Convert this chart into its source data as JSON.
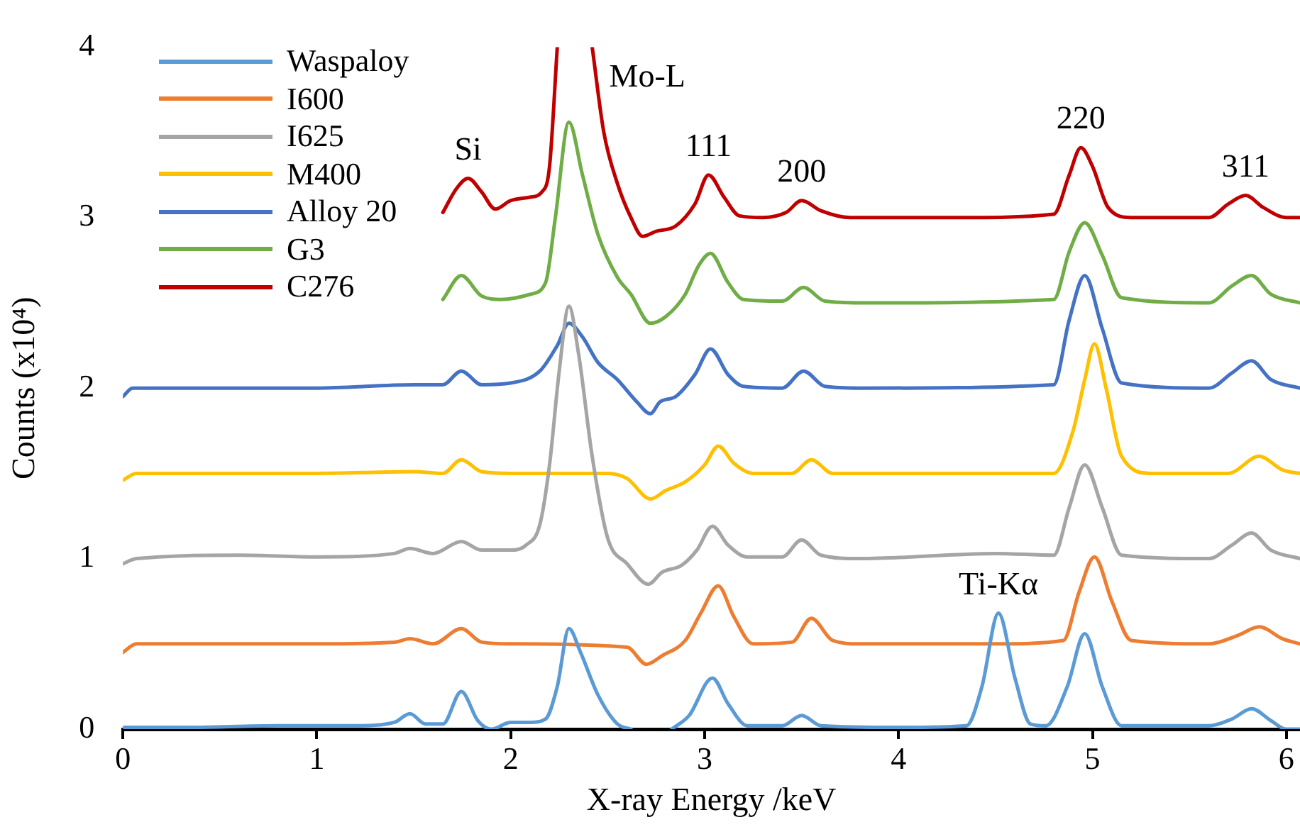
{
  "chart_data": {
    "type": "line",
    "xlabel": "X-ray Energy /keV",
    "ylabel": "Counts (x10⁴)",
    "xlim": [
      0,
      6.07
    ],
    "ylim": [
      0,
      4
    ],
    "xticks": [
      0,
      1,
      2,
      3,
      4,
      5,
      6
    ],
    "yticks": [
      0,
      1,
      2,
      3,
      4
    ],
    "grid": false,
    "legend": "top left",
    "series": [
      {
        "name": "Waspaloy",
        "color": "#5b9bd5",
        "x": [
          0,
          0.3,
          0.8,
          1.2,
          1.4,
          1.48,
          1.56,
          1.65,
          1.745,
          1.83,
          1.9,
          2.0,
          2.1,
          2.18,
          2.24,
          2.3,
          2.36,
          2.45,
          2.55,
          2.62,
          2.7,
          2.83,
          2.92,
          3.04,
          3.12,
          3.22,
          3.4,
          3.5,
          3.6,
          4.0,
          4.35,
          4.43,
          4.515,
          4.6,
          4.68,
          4.76,
          4.87,
          4.96,
          5.05,
          5.15,
          5.6,
          5.72,
          5.82,
          5.92,
          6.0,
          6.07
        ],
        "values": [
          0.01,
          0.01,
          0.02,
          0.02,
          0.04,
          0.09,
          0.03,
          0.03,
          0.22,
          0.05,
          0.0,
          0.04,
          0.04,
          0.06,
          0.25,
          0.59,
          0.45,
          0.2,
          0.03,
          0.0,
          null,
          0.0,
          0.08,
          0.3,
          0.15,
          0.02,
          0.02,
          0.08,
          0.02,
          0.01,
          0.02,
          0.25,
          0.68,
          0.3,
          0.03,
          0.02,
          0.25,
          0.56,
          0.25,
          0.02,
          0.02,
          0.06,
          0.12,
          0.05,
          0.0,
          0.0
        ]
      },
      {
        "name": "I600",
        "color": "#ed7d31",
        "x": [
          0,
          0.07,
          0.6,
          1.0,
          1.4,
          1.48,
          1.6,
          1.745,
          1.85,
          2.0,
          2.6,
          2.7,
          2.78,
          2.9,
          2.98,
          3.07,
          3.15,
          3.25,
          3.45,
          3.55,
          3.66,
          3.8,
          4.5,
          4.85,
          4.93,
          5.01,
          5.1,
          5.2,
          5.6,
          5.75,
          5.86,
          5.98,
          6.07
        ],
        "values": [
          0.45,
          0.5,
          0.5,
          0.5,
          0.51,
          0.53,
          0.5,
          0.59,
          0.51,
          0.5,
          0.48,
          0.38,
          0.43,
          0.52,
          0.68,
          0.84,
          0.66,
          0.5,
          0.51,
          0.65,
          0.52,
          0.5,
          0.5,
          0.52,
          0.8,
          1.01,
          0.75,
          0.52,
          0.5,
          0.55,
          0.6,
          0.53,
          0.5
        ]
      },
      {
        "name": "I625",
        "color": "#a5a5a5",
        "x": [
          0,
          0.07,
          0.6,
          1.0,
          1.4,
          1.48,
          1.6,
          1.745,
          1.85,
          2.0,
          2.08,
          2.15,
          2.2,
          2.25,
          2.3,
          2.35,
          2.42,
          2.5,
          2.6,
          2.71,
          2.78,
          2.88,
          2.96,
          3.04,
          3.12,
          3.22,
          3.4,
          3.5,
          3.6,
          3.8,
          4.5,
          4.8,
          4.88,
          4.96,
          5.05,
          5.15,
          5.6,
          5.72,
          5.82,
          5.92,
          6.07
        ],
        "values": [
          0.97,
          1.0,
          1.02,
          1.01,
          1.03,
          1.06,
          1.03,
          1.1,
          1.05,
          1.05,
          1.08,
          1.2,
          1.55,
          2.1,
          2.48,
          2.2,
          1.6,
          1.12,
          0.97,
          0.85,
          0.92,
          0.96,
          1.05,
          1.19,
          1.08,
          1.01,
          1.01,
          1.11,
          1.02,
          1.0,
          1.03,
          1.02,
          1.3,
          1.55,
          1.3,
          1.02,
          1.0,
          1.08,
          1.15,
          1.05,
          1.0
        ]
      },
      {
        "name": "M400",
        "color": "#ffc000",
        "x": [
          0,
          0.07,
          0.5,
          1.0,
          1.5,
          1.65,
          1.745,
          1.85,
          2.0,
          2.5,
          2.6,
          2.72,
          2.8,
          2.9,
          3.0,
          3.07,
          3.15,
          3.25,
          3.45,
          3.55,
          3.66,
          3.8,
          4.8,
          4.9,
          4.96,
          5.01,
          5.07,
          5.15,
          5.3,
          5.7,
          5.86,
          5.98,
          6.07
        ],
        "values": [
          1.46,
          1.5,
          1.5,
          1.5,
          1.51,
          1.5,
          1.58,
          1.51,
          1.5,
          1.5,
          1.47,
          1.35,
          1.4,
          1.45,
          1.55,
          1.66,
          1.56,
          1.5,
          1.5,
          1.58,
          1.5,
          1.5,
          1.5,
          1.75,
          2.05,
          2.26,
          2.0,
          1.6,
          1.5,
          1.5,
          1.6,
          1.52,
          1.5
        ]
      },
      {
        "name": "Alloy 20",
        "color": "#4472c4",
        "x": [
          0,
          0.05,
          0.5,
          1.0,
          1.5,
          1.65,
          1.745,
          1.85,
          2.0,
          2.15,
          2.24,
          2.3,
          2.37,
          2.45,
          2.55,
          2.65,
          2.72,
          2.77,
          2.85,
          2.95,
          3.03,
          3.12,
          3.2,
          3.4,
          3.51,
          3.62,
          3.8,
          4.8,
          4.88,
          4.96,
          5.05,
          5.15,
          5.6,
          5.72,
          5.82,
          5.92,
          6.07
        ],
        "values": [
          1.95,
          2.0,
          2.0,
          2.0,
          2.02,
          2.02,
          2.1,
          2.02,
          2.03,
          2.1,
          2.25,
          2.38,
          2.3,
          2.15,
          2.05,
          1.92,
          1.85,
          1.92,
          1.95,
          2.08,
          2.23,
          2.08,
          2.01,
          2.0,
          2.1,
          2.01,
          2.0,
          2.02,
          2.4,
          2.66,
          2.35,
          2.03,
          2.0,
          2.09,
          2.16,
          2.05,
          2.0
        ]
      },
      {
        "name": "G3",
        "color": "#70ad47",
        "x": [
          1.65,
          1.745,
          1.85,
          1.95,
          2.1,
          2.18,
          2.23,
          2.3,
          2.37,
          2.45,
          2.55,
          2.62,
          2.72,
          2.8,
          2.9,
          2.97,
          3.03,
          3.12,
          3.2,
          3.4,
          3.51,
          3.62,
          3.8,
          4.8,
          4.88,
          4.96,
          5.05,
          5.15,
          5.6,
          5.72,
          5.82,
          5.92,
          6.07
        ],
        "values": [
          2.52,
          2.66,
          2.54,
          2.52,
          2.55,
          2.62,
          3.0,
          3.56,
          3.25,
          2.9,
          2.65,
          2.55,
          2.38,
          2.42,
          2.55,
          2.72,
          2.79,
          2.62,
          2.52,
          2.51,
          2.59,
          2.51,
          2.5,
          2.52,
          2.8,
          2.97,
          2.78,
          2.53,
          2.5,
          2.6,
          2.66,
          2.55,
          2.5
        ]
      },
      {
        "name": "C276",
        "color": "#c00000",
        "x": [
          1.65,
          1.72,
          1.78,
          1.85,
          1.92,
          2.0,
          2.1,
          2.16,
          2.2,
          2.24,
          2.33,
          2.42,
          2.48,
          2.55,
          2.62,
          2.68,
          2.75,
          2.85,
          2.95,
          3.02,
          3.1,
          3.18,
          3.3,
          3.42,
          3.5,
          3.6,
          3.75,
          4.3,
          4.8,
          4.88,
          4.94,
          5.0,
          5.08,
          5.2,
          5.6,
          5.7,
          5.79,
          5.88,
          6.0,
          6.07
        ],
        "values": [
          3.03,
          3.17,
          3.23,
          3.15,
          3.05,
          3.1,
          3.12,
          3.15,
          3.3,
          4.0,
          null,
          4.0,
          3.5,
          3.2,
          3.0,
          2.89,
          2.92,
          2.95,
          3.08,
          3.25,
          3.12,
          3.01,
          3.0,
          3.03,
          3.1,
          3.04,
          3.0,
          3.0,
          3.02,
          3.25,
          3.41,
          3.3,
          3.06,
          3.0,
          3.0,
          3.08,
          3.13,
          3.06,
          3.0,
          3.0
        ]
      }
    ],
    "annotations": [
      {
        "text": "Si",
        "x": 1.78,
        "y": 3.23
      },
      {
        "text": "Mo-L",
        "x": 2.42,
        "y": 4.0
      },
      {
        "text": "111",
        "x": 3.02,
        "y": 3.25
      },
      {
        "text": "200",
        "x": 3.5,
        "y": 3.1
      },
      {
        "text": "220",
        "x": 4.94,
        "y": 3.41
      },
      {
        "text": "311",
        "x": 5.79,
        "y": 3.13
      },
      {
        "text": "Ti-Kα",
        "x": 4.515,
        "y": 0.68
      }
    ]
  }
}
